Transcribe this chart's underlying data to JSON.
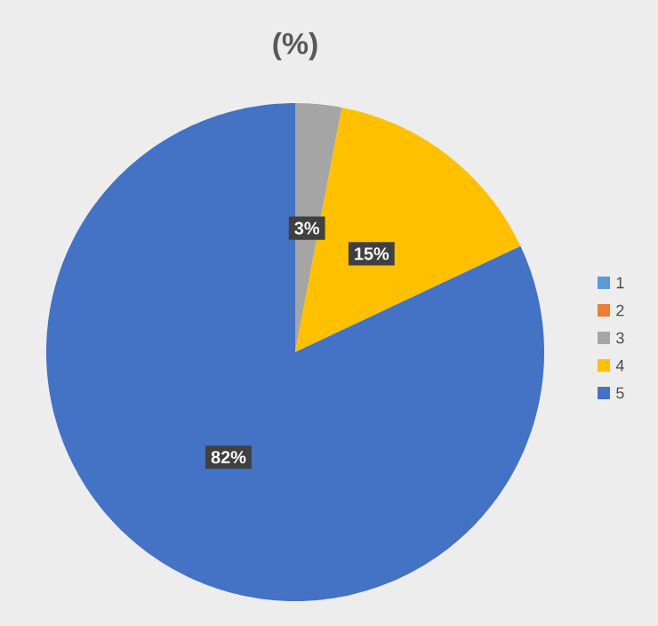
{
  "chart_data": {
    "type": "pie",
    "title": "(%)",
    "categories": [
      "1",
      "2",
      "3",
      "4",
      "5"
    ],
    "values": [
      0,
      0,
      3,
      15,
      82
    ],
    "colors": [
      "#5b9bd5",
      "#ed7d31",
      "#a5a5a5",
      "#ffc000",
      "#4472c4"
    ],
    "value_labels": [
      null,
      null,
      "3%",
      "15%",
      "82%"
    ],
    "legend": "right"
  }
}
